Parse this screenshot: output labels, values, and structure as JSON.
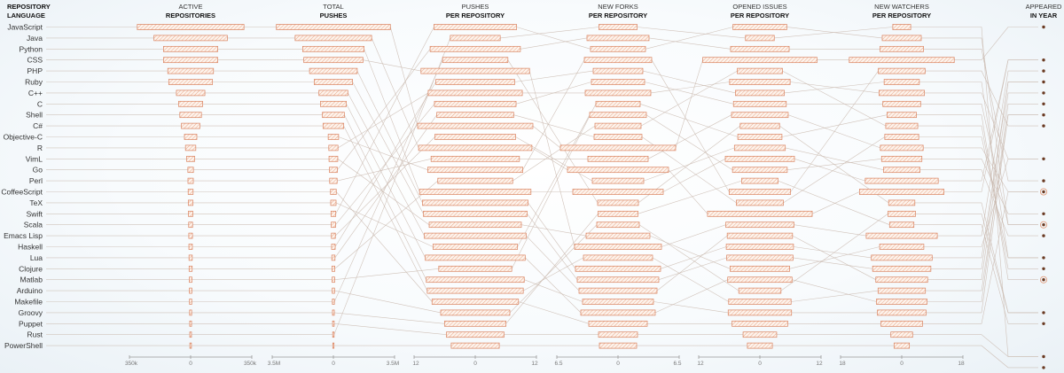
{
  "chart_data": {
    "type": "bar",
    "languages": [
      "JavaScript",
      "Java",
      "Python",
      "CSS",
      "PHP",
      "Ruby",
      "C++",
      "C",
      "Shell",
      "C#",
      "Objective-C",
      "R",
      "VimL",
      "Go",
      "Perl",
      "CoffeeScript",
      "TeX",
      "Swift",
      "Scala",
      "Emacs Lisp",
      "Haskell",
      "Lua",
      "Clojure",
      "Matlab",
      "Arduino",
      "Makefile",
      "Groovy",
      "Puppet",
      "Rust",
      "PowerShell"
    ],
    "language_header": [
      "REPOSITORY",
      "LANGUAGE"
    ],
    "columns": [
      {
        "title": [
          "ACTIVE",
          "REPOSITORIES"
        ],
        "ticks": [
          "350k",
          "0",
          "350k"
        ],
        "max": 350000,
        "values": [
          323938,
          222852,
          164852,
          164585,
          138771,
          132848,
          86505,
          73075,
          65670,
          56062,
          37654,
          31390,
          24370,
          16880,
          16245,
          15010,
          14405,
          13600,
          12000,
          11215,
          10590,
          9920,
          9350,
          8120,
          7400,
          6915,
          6330,
          5685,
          5270,
          4850
        ]
      },
      {
        "title": [
          "TOTAL",
          "PUSHES"
        ],
        "ticks": [
          "3.5M",
          "0",
          "3.5M"
        ],
        "max": 3500000,
        "values": [
          3461586,
          2323061,
          1865346,
          1795563,
          1449178,
          1163917,
          877815,
          787016,
          668124,
          628470,
          316108,
          279505,
          266012,
          241205,
          227000,
          175000,
          163000,
          145000,
          132000,
          120000,
          110000,
          98000,
          88000,
          80000,
          70000,
          63000,
          56000,
          50000,
          44000,
          38000
        ]
      },
      {
        "title": [
          "PUSHES",
          "PER REPOSITORY"
        ],
        "ticks": [
          "12",
          "0",
          "12"
        ],
        "max": 12,
        "values": [
          12.0,
          11.8,
          11.6,
          11.3,
          11.0,
          10.8,
          10.6,
          10.4,
          10.2,
          10.0,
          9.9,
          9.8,
          9.6,
          9.4,
          9.2,
          9.0,
          8.8,
          8.6,
          8.5,
          8.4,
          8.2,
          8.0,
          7.8,
          7.6,
          7.2,
          6.8,
          6.4,
          6.0,
          5.2,
          5.0
        ]
      },
      {
        "title": [
          "NEW FORKS",
          "PER REPOSITORY"
        ],
        "ticks": [
          "6.5",
          "0",
          "6.5"
        ],
        "max": 6.5,
        "values": [
          6.5,
          5.7,
          5.1,
          4.9,
          4.8,
          4.6,
          4.4,
          4.2,
          4.0,
          3.9,
          3.8,
          3.7,
          3.6,
          3.5,
          3.4,
          3.3,
          3.2,
          3.1,
          3.0,
          2.9,
          2.8,
          2.7,
          2.6,
          2.5,
          2.4,
          2.3,
          2.25,
          2.2,
          2.15,
          2.1
        ]
      },
      {
        "title": [
          "OPENED ISSUES",
          "PER REPOSITORY"
        ],
        "ticks": [
          "12",
          "0",
          "12"
        ],
        "max": 12,
        "values": [
          11.9,
          10.9,
          7.2,
          7.1,
          7.0,
          6.9,
          6.8,
          6.7,
          6.6,
          6.5,
          6.4,
          6.3,
          6.2,
          6.1,
          5.9,
          5.8,
          5.7,
          5.6,
          5.5,
          5.3,
          5.1,
          4.9,
          4.7,
          4.6,
          4.4,
          4.1,
          3.8,
          3.5,
          3.0,
          2.6
        ]
      },
      {
        "title": [
          "NEW WATCHERS",
          "PER REPOSITORY"
        ],
        "ticks": [
          "18",
          "0",
          "18"
        ],
        "max": 18,
        "values": [
          16.4,
          13.2,
          11.4,
          11.1,
          9.5,
          9.1,
          8.1,
          7.9,
          7.6,
          7.4,
          7.3,
          7.1,
          6.9,
          6.8,
          6.7,
          6.5,
          6.3,
          6.1,
          5.9,
          5.7,
          5.5,
          5.3,
          5.0,
          4.6,
          4.3,
          4.1,
          3.8,
          3.4,
          2.8,
          2.4
        ]
      }
    ],
    "order_by_column": [
      [
        0,
        1,
        2,
        3,
        4,
        5,
        6,
        7,
        8,
        9,
        10,
        11,
        12,
        13,
        14,
        15,
        16,
        17,
        18,
        19,
        20,
        21,
        22,
        23,
        24,
        25,
        26,
        27,
        28,
        29
      ],
      [
        0,
        1,
        2,
        3,
        4,
        5,
        6,
        7,
        8,
        9,
        10,
        11,
        12,
        13,
        14,
        15,
        16,
        17,
        18,
        19,
        20,
        21,
        22,
        23,
        24,
        25,
        26,
        27,
        28,
        29
      ],
      [
        17,
        28,
        13,
        25,
        3,
        20,
        11,
        18,
        21,
        0,
        19,
        1,
        14,
        10,
        22,
        2,
        4,
        5,
        12,
        6,
        16,
        7,
        23,
        8,
        9,
        15,
        24,
        26,
        27,
        29
      ],
      [
        28,
        13,
        17,
        10,
        20,
        18,
        11,
        23,
        16,
        22,
        21,
        0,
        14,
        1,
        19,
        2,
        25,
        26,
        24,
        12,
        3,
        9,
        4,
        5,
        6,
        8,
        7,
        15,
        27,
        29
      ],
      [
        17,
        28,
        13,
        0,
        22,
        11,
        20,
        18,
        14,
        25,
        23,
        19,
        2,
        16,
        26,
        10,
        21,
        1,
        3,
        6,
        4,
        5,
        12,
        7,
        24,
        9,
        8,
        15,
        27,
        29
      ],
      [
        28,
        17,
        13,
        0,
        10,
        20,
        11,
        18,
        23,
        22,
        21,
        14,
        16,
        19,
        2,
        1,
        25,
        24,
        26,
        3,
        12,
        4,
        5,
        6,
        9,
        7,
        8,
        15,
        27,
        29
      ]
    ],
    "year_header": [
      "APPEARED",
      "IN YEAR"
    ],
    "year_markers": [
      {
        "slot": 0,
        "count": 1
      },
      {
        "slot": 3,
        "count": 1
      },
      {
        "slot": 4,
        "count": 1
      },
      {
        "slot": 5,
        "count": 1
      },
      {
        "slot": 6,
        "count": 1
      },
      {
        "slot": 7,
        "count": 1
      },
      {
        "slot": 8,
        "count": 1
      },
      {
        "slot": 9,
        "count": 1
      },
      {
        "slot": 12,
        "count": 1
      },
      {
        "slot": 14,
        "count": 1
      },
      {
        "slot": 15,
        "count": 2
      },
      {
        "slot": 17,
        "count": 1
      },
      {
        "slot": 18,
        "count": 2
      },
      {
        "slot": 19,
        "count": 1
      },
      {
        "slot": 21,
        "count": 1
      },
      {
        "slot": 22,
        "count": 1
      },
      {
        "slot": 23,
        "count": 2
      },
      {
        "slot": 26,
        "count": 1
      },
      {
        "slot": 27,
        "count": 1
      },
      {
        "slot": 30,
        "count": 1
      },
      {
        "slot": 31,
        "count": 1
      }
    ]
  }
}
